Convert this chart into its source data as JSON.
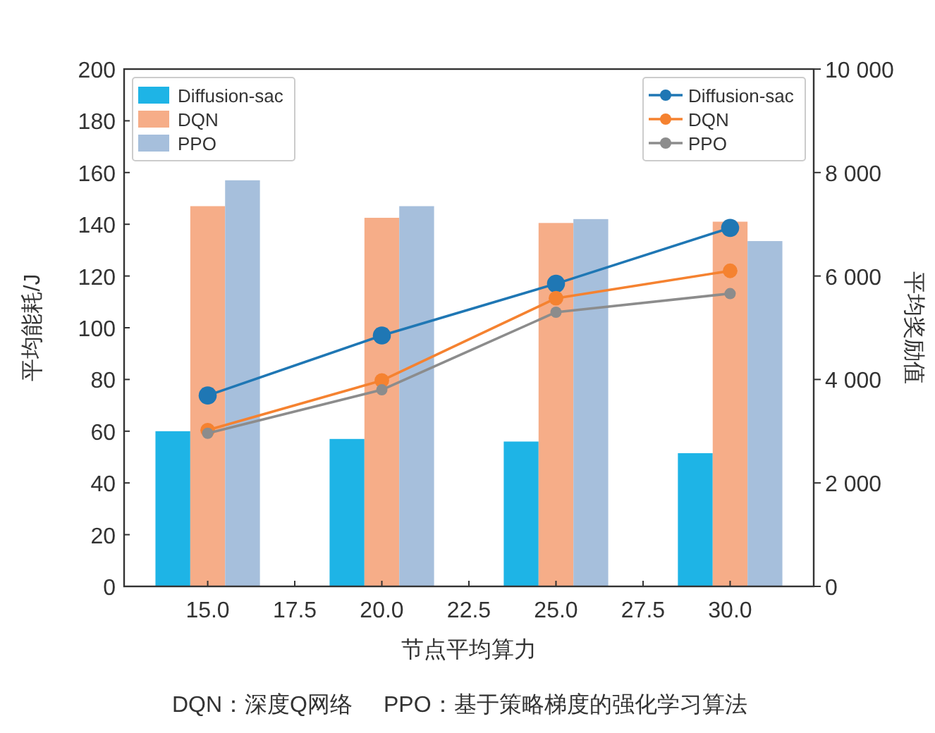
{
  "chart_data": {
    "type": "bar",
    "x": [
      15,
      20,
      25,
      30
    ],
    "xlim": [
      12.6,
      32.4
    ],
    "xticks": [
      {
        "value": 15,
        "label": "15.0"
      },
      {
        "value": 17.5,
        "label": "17.5"
      },
      {
        "value": 20,
        "label": "20.0"
      },
      {
        "value": 22.5,
        "label": "22.5"
      },
      {
        "value": 25,
        "label": "25.0"
      },
      {
        "value": 27.5,
        "label": "27.5"
      },
      {
        "value": 30,
        "label": "30.0"
      }
    ],
    "ylim": [
      0,
      200
    ],
    "yticks": [
      0,
      20,
      40,
      60,
      80,
      100,
      120,
      140,
      160,
      180,
      200
    ],
    "y2lim": [
      0,
      10000
    ],
    "y2ticks": [
      0,
      {
        "value": 2000,
        "label": "2 000"
      },
      {
        "value": 4000,
        "label": "4 000"
      },
      {
        "value": 6000,
        "label": "6 000"
      },
      {
        "value": 8000,
        "label": "8 000"
      },
      {
        "value": 10000,
        "label": "10 000"
      }
    ],
    "xlabel": "节点平均算力",
    "ylabel": "平均能耗/J",
    "y2label": "平均奖励值",
    "legend": "top left",
    "grid": false,
    "marker": "circle",
    "series": [
      {
        "name": "Diffusion-sac",
        "color": "#1eb4e6",
        "values": [
          60,
          57,
          56,
          51.5
        ]
      },
      {
        "name": "DQN",
        "color": "#f6ad88",
        "values": [
          147,
          142.5,
          140.5,
          141
        ]
      },
      {
        "name": "PPO",
        "color": "#a6bfdc",
        "values": [
          157,
          147,
          142,
          133.5
        ]
      },
      {
        "name": "Diffusion-sac",
        "type": "line",
        "axis": "y2",
        "color": "#1f77b4",
        "values": [
          3690,
          4850,
          5850,
          6930
        ]
      },
      {
        "name": "DQN",
        "type": "line",
        "axis": "y2",
        "color": "#f58230",
        "values": [
          3020,
          3980,
          5570,
          6100
        ]
      },
      {
        "name": "PPO",
        "type": "line",
        "axis": "y2",
        "color": "#8c8c8c",
        "values": [
          2960,
          3800,
          5300,
          5660
        ]
      }
    ],
    "annotations": [
      "DQN：深度Q网络",
      "PPO：基于策略梯度的强化学习算法"
    ]
  }
}
